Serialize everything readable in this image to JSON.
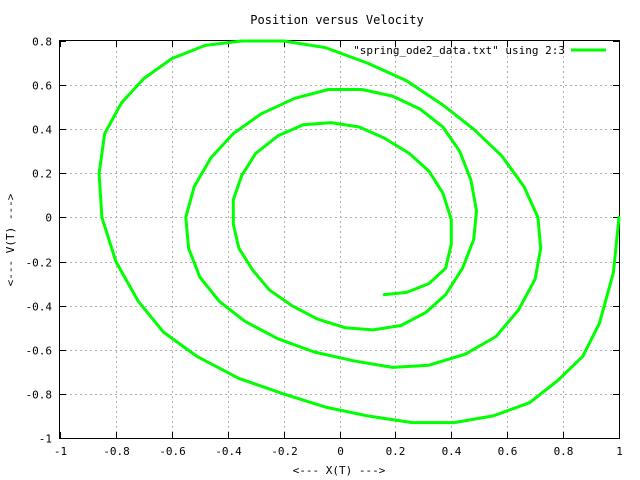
{
  "chart_data": {
    "type": "line",
    "title": "Position versus Velocity",
    "xlabel": "<--- X(T) --->",
    "ylabel": "<--- V(T) --->",
    "xlim": [
      -1,
      1
    ],
    "ylim": [
      -1,
      0.8
    ],
    "x_ticks": [
      -1,
      -0.8,
      -0.6,
      -0.4,
      -0.2,
      0,
      0.2,
      0.4,
      0.6,
      0.8,
      1
    ],
    "x_tick_labels": [
      "-1",
      "-0.8",
      "-0.6",
      "-0.4",
      "-0.2",
      "0",
      "0.2",
      "0.4",
      "0.6",
      "0.8",
      "1"
    ],
    "y_ticks": [
      -1,
      -0.8,
      -0.6,
      -0.4,
      -0.2,
      0,
      0.2,
      0.4,
      0.6,
      0.8
    ],
    "y_tick_labels": [
      "-1",
      "-0.8",
      "-0.6",
      "-0.4",
      "-0.2",
      "0",
      "0.2",
      "0.4",
      "0.6",
      "0.8"
    ],
    "grid": true,
    "legend_position": "top-right",
    "series": [
      {
        "name": "\"spring_ode2_data.txt\" using 2:3",
        "color": "#00ff00",
        "x": [
          1.0,
          0.98,
          0.93,
          0.87,
          0.78,
          0.68,
          0.55,
          0.41,
          0.26,
          0.1,
          -0.05,
          -0.2,
          -0.36,
          -0.51,
          -0.63,
          -0.72,
          -0.8,
          -0.85,
          -0.86,
          -0.84,
          -0.78,
          -0.7,
          -0.6,
          -0.48,
          -0.35,
          -0.2,
          -0.05,
          0.1,
          0.24,
          0.37,
          0.48,
          0.58,
          0.66,
          0.71,
          0.72,
          0.7,
          0.64,
          0.56,
          0.45,
          0.32,
          0.19,
          0.05,
          -0.09,
          -0.22,
          -0.34,
          -0.43,
          -0.5,
          -0.54,
          -0.55,
          -0.52,
          -0.46,
          -0.38,
          -0.28,
          -0.16,
          -0.04,
          0.08,
          0.19,
          0.29,
          0.37,
          0.43,
          0.47,
          0.49,
          0.48,
          0.44,
          0.38,
          0.31,
          0.22,
          0.12,
          0.02,
          -0.08,
          -0.17,
          -0.25,
          -0.31,
          -0.36,
          -0.38,
          -0.38,
          -0.35,
          -0.3,
          -0.22,
          -0.13,
          -0.03,
          0.07,
          0.16,
          0.25,
          0.32,
          0.37,
          0.4,
          0.4,
          0.38,
          0.32,
          0.24,
          0.16
        ],
        "y": [
          0.0,
          -0.25,
          -0.48,
          -0.63,
          -0.74,
          -0.84,
          -0.9,
          -0.93,
          -0.93,
          -0.9,
          -0.86,
          -0.8,
          -0.73,
          -0.63,
          -0.52,
          -0.38,
          -0.2,
          0.0,
          0.2,
          0.38,
          0.52,
          0.63,
          0.72,
          0.78,
          0.8,
          0.8,
          0.77,
          0.7,
          0.62,
          0.51,
          0.4,
          0.28,
          0.14,
          0.0,
          -0.14,
          -0.28,
          -0.42,
          -0.54,
          -0.62,
          -0.67,
          -0.68,
          -0.65,
          -0.61,
          -0.55,
          -0.47,
          -0.38,
          -0.27,
          -0.14,
          0.0,
          0.14,
          0.27,
          0.38,
          0.47,
          0.54,
          0.58,
          0.58,
          0.55,
          0.49,
          0.41,
          0.3,
          0.17,
          0.03,
          -0.1,
          -0.23,
          -0.35,
          -0.43,
          -0.49,
          -0.51,
          -0.5,
          -0.46,
          -0.4,
          -0.33,
          -0.24,
          -0.14,
          -0.03,
          0.08,
          0.19,
          0.29,
          0.37,
          0.42,
          0.43,
          0.41,
          0.36,
          0.29,
          0.21,
          0.11,
          -0.01,
          -0.12,
          -0.23,
          -0.3,
          -0.34,
          -0.35
        ]
      }
    ]
  }
}
